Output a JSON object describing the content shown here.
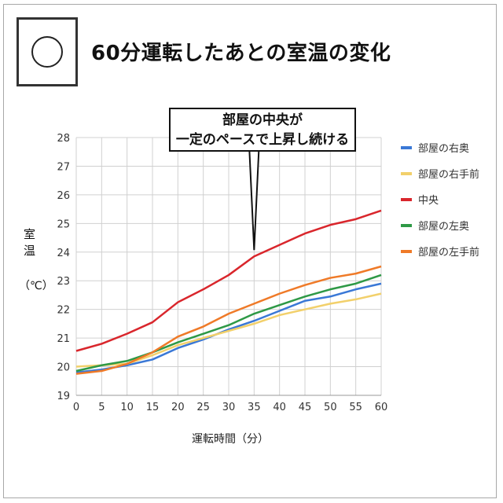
{
  "title": "60分運転したあとの室温の変化",
  "callout": {
    "line1": "部屋の中央が",
    "line2": "一定のペースで上昇し続ける"
  },
  "y_axis_title": {
    "char1": "室",
    "char2": "温",
    "unit": "（℃）"
  },
  "x_axis_title": "運転時間（分）",
  "chart_data": {
    "type": "line",
    "x": [
      0,
      5,
      10,
      15,
      20,
      25,
      30,
      35,
      40,
      45,
      50,
      55,
      60
    ],
    "xlim": [
      0,
      60
    ],
    "ylim": [
      19,
      28
    ],
    "yticks": [
      19,
      20,
      21,
      22,
      23,
      24,
      25,
      26,
      27,
      28
    ],
    "grid": true,
    "legend_position": "right",
    "series": [
      {
        "name": "部屋の右奥",
        "color": "#3a78d6",
        "values": [
          19.8,
          19.9,
          20.05,
          20.25,
          20.65,
          20.95,
          21.3,
          21.6,
          21.95,
          22.3,
          22.45,
          22.7,
          22.9
        ]
      },
      {
        "name": "部屋の右手前",
        "color": "#f2d06b",
        "values": [
          20.0,
          20.05,
          20.1,
          20.4,
          20.75,
          21.0,
          21.25,
          21.5,
          21.8,
          22.0,
          22.2,
          22.35,
          22.55
        ]
      },
      {
        "name": "中央",
        "color": "#d9262c",
        "values": [
          20.55,
          20.8,
          21.15,
          21.55,
          22.25,
          22.7,
          23.2,
          23.85,
          24.25,
          24.65,
          24.95,
          25.15,
          25.45
        ]
      },
      {
        "name": "部屋の左奥",
        "color": "#2e9946",
        "values": [
          19.85,
          20.05,
          20.2,
          20.5,
          20.85,
          21.15,
          21.45,
          21.85,
          22.15,
          22.45,
          22.7,
          22.9,
          23.2
        ]
      },
      {
        "name": "部屋の左手前",
        "color": "#ef7a28",
        "values": [
          19.75,
          19.85,
          20.1,
          20.5,
          21.05,
          21.4,
          21.85,
          22.2,
          22.55,
          22.85,
          23.1,
          23.25,
          23.5
        ]
      }
    ]
  }
}
